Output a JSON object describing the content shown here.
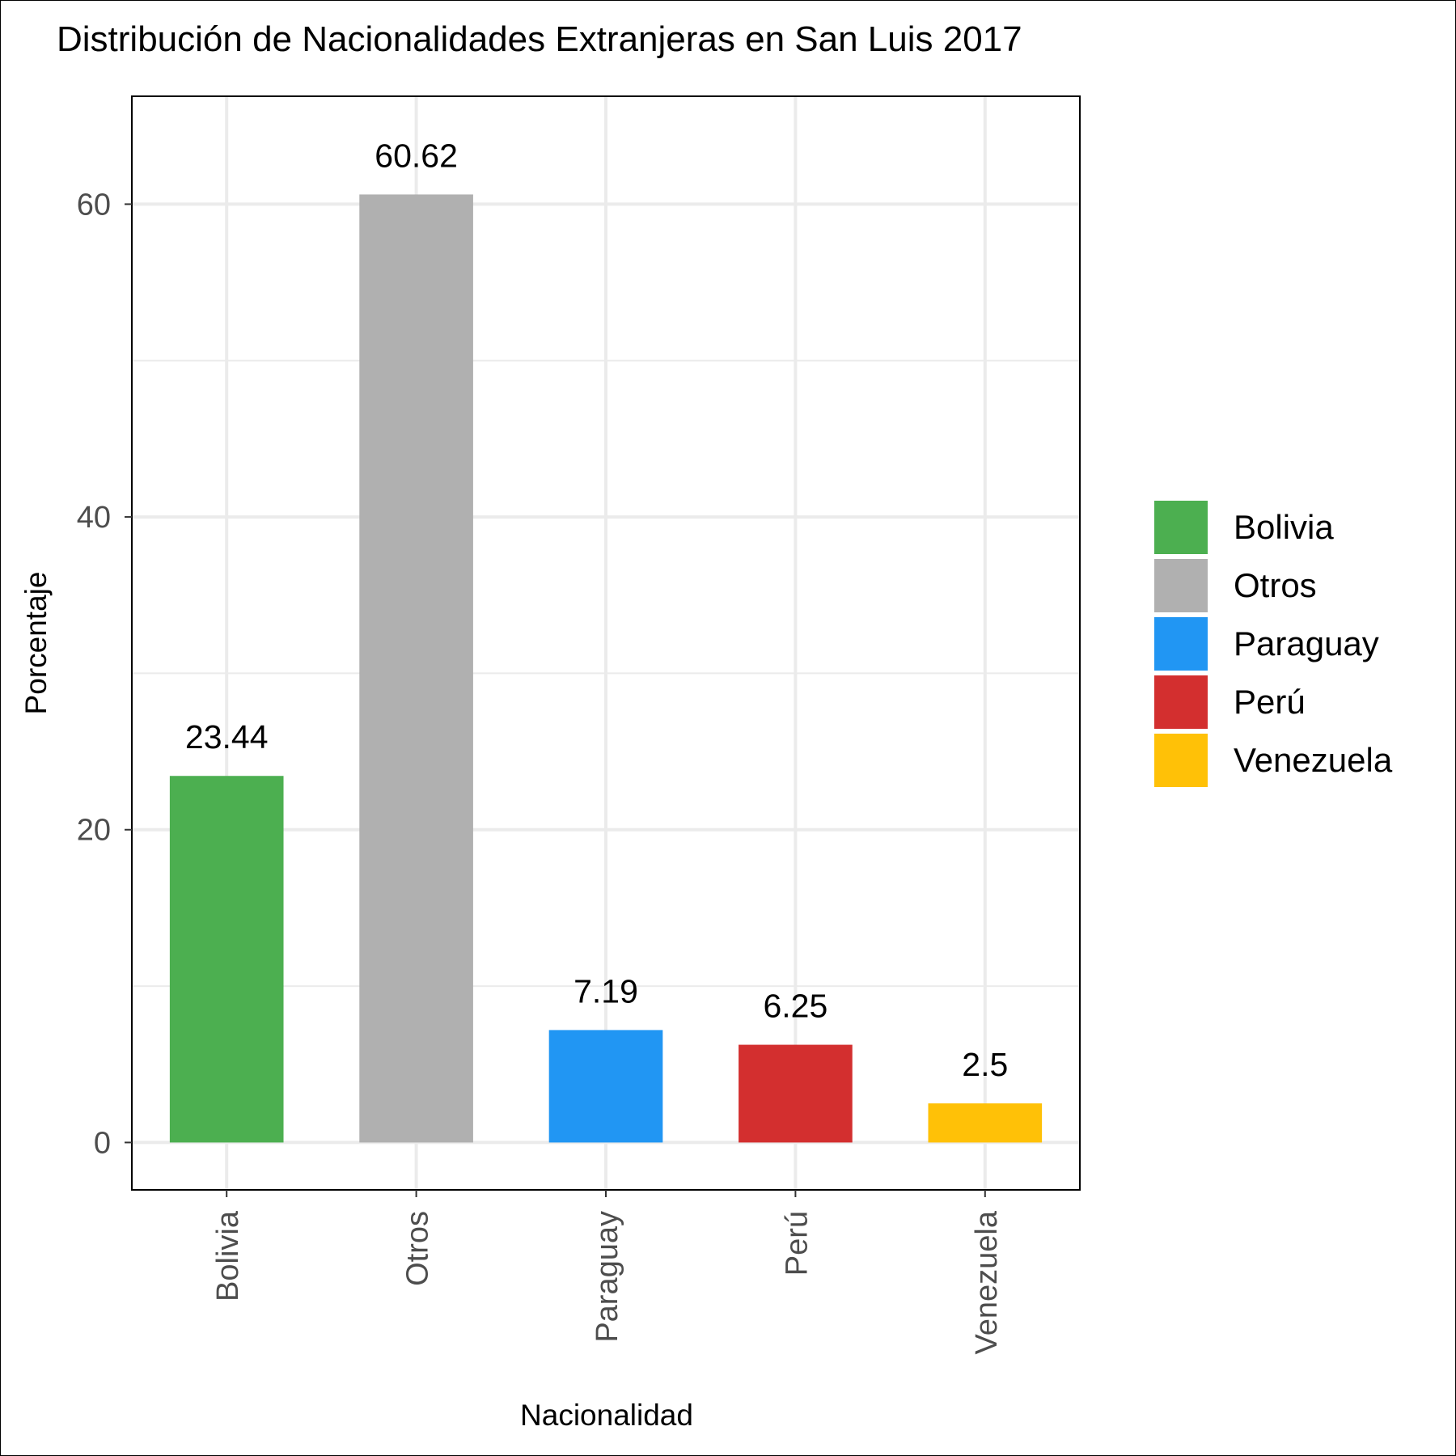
{
  "chart_data": {
    "type": "bar",
    "title": "Distribución de Nacionalidades Extranjeras en San Luis 2017",
    "xlabel": "Nacionalidad",
    "ylabel": "Porcentaje",
    "categories": [
      "Bolivia",
      "Otros",
      "Paraguay",
      "Perú",
      "Venezuela"
    ],
    "values": [
      23.44,
      60.62,
      7.19,
      6.25,
      2.5
    ],
    "value_labels": [
      "23.44",
      "60.62",
      "7.19",
      "6.25",
      "2.5"
    ],
    "colors": [
      "#4caf50",
      "#b0b0b0",
      "#2196f3",
      "#d32f2f",
      "#ffc107"
    ],
    "ylim": [
      -3.03,
      66.9
    ],
    "yticks": [
      0,
      20,
      40,
      60
    ],
    "ytick_labels": [
      "0",
      "20",
      "40",
      "60"
    ],
    "grid": true,
    "legend": {
      "placement": "right",
      "entries": [
        "Bolivia",
        "Otros",
        "Paraguay",
        "Perú",
        "Venezuela"
      ]
    }
  }
}
